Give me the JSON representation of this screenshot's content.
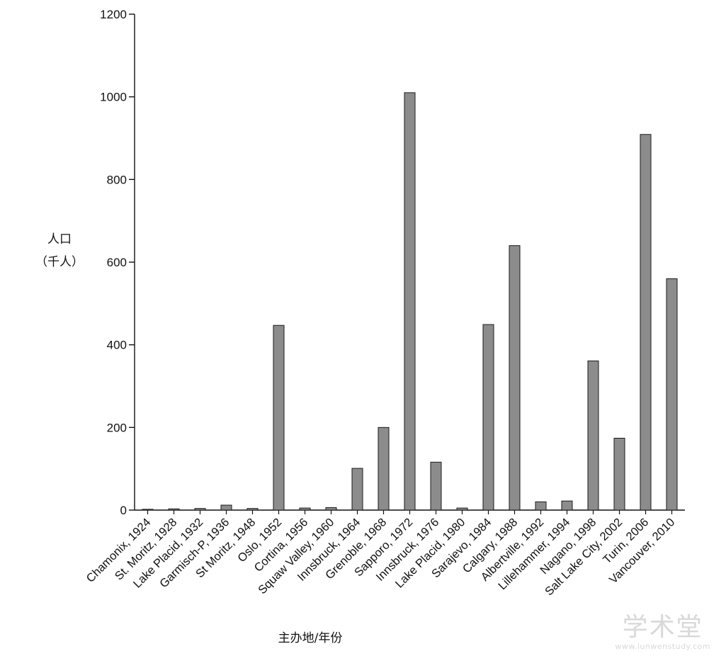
{
  "chart_data": {
    "type": "bar",
    "ylabel_line1": "人口",
    "ylabel_line2": "（千人）",
    "xlabel": "主办地/年份",
    "ylim": [
      0,
      1200
    ],
    "yticks": [
      0,
      200,
      400,
      600,
      800,
      1000,
      1200
    ],
    "categories": [
      "Chamonix, 1924",
      "St. Moritz, 1928",
      "Lake Placid, 1932",
      "Garmisch-P, 1936",
      "St Moritz, 1948",
      "Oslo, 1952",
      "Cortina, 1956",
      "Squaw Valley, 1960",
      "Innsbruck, 1964",
      "Grenoble, 1968",
      "Sapporo, 1972",
      "Innsbruck, 1976",
      "Lake Placid, 1980",
      "Sarajevo, 1984",
      "Calgary, 1988",
      "Albertville, 1992",
      "Lillehammer, 1994",
      "Nagano, 1998",
      "Salt Lake City, 2002",
      "Turin, 2006",
      "Vancouver, 2010"
    ],
    "values": [
      2,
      3,
      4,
      12,
      4,
      447,
      5,
      6,
      101,
      200,
      1010,
      116,
      5,
      449,
      640,
      20,
      22,
      361,
      174,
      909,
      560
    ],
    "bar_color": "#8c8c8c",
    "grid": false,
    "legend": "none"
  },
  "watermark": {
    "text": "学术堂",
    "url": "www.lunwenstudy.com"
  }
}
